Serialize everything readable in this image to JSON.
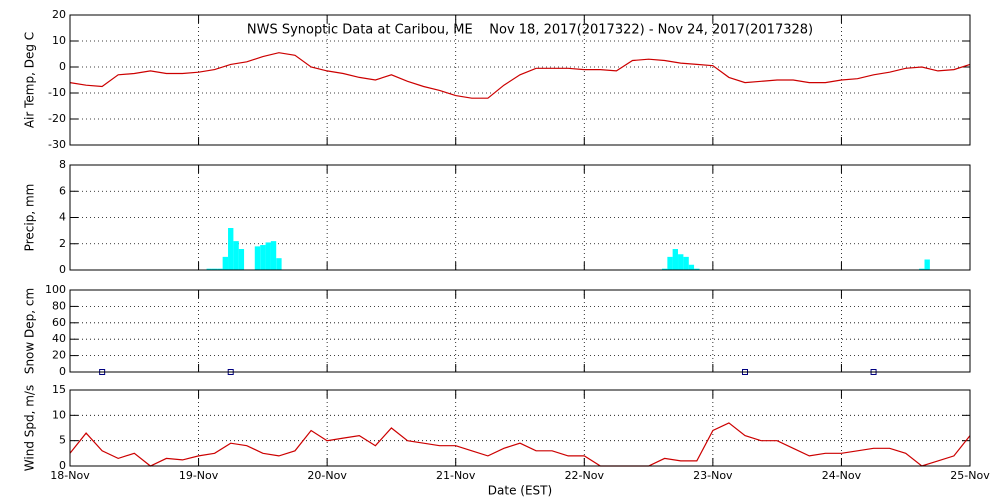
{
  "chart_data": [
    {
      "type": "line",
      "title": "NWS Synoptic Data at Caribou, ME    Nov 18, 2017(2017322) - Nov 24, 2017(2017328)",
      "y_label": "Air Temp, Deg C",
      "color": "#cc0000",
      "grid": true,
      "ylim": [
        -30,
        20
      ],
      "yticks": [
        -30,
        -20,
        -10,
        0,
        10,
        20
      ],
      "x": [
        0,
        0.125,
        0.25,
        0.375,
        0.5,
        0.625,
        0.75,
        0.875,
        1,
        1.125,
        1.25,
        1.375,
        1.5,
        1.625,
        1.75,
        1.875,
        2,
        2.125,
        2.25,
        2.375,
        2.5,
        2.625,
        2.75,
        2.875,
        3,
        3.125,
        3.25,
        3.375,
        3.5,
        3.625,
        3.75,
        3.875,
        4,
        4.125,
        4.25,
        4.375,
        4.5,
        4.625,
        4.75,
        4.875,
        5,
        5.125,
        5.25,
        5.375,
        5.5,
        5.625,
        5.75,
        5.875,
        6,
        6.125,
        6.25,
        6.375,
        6.5,
        6.625,
        6.75,
        6.875,
        7
      ],
      "values": [
        -6,
        -7,
        -7.5,
        -3,
        -2.5,
        -1.5,
        -2.5,
        -2.5,
        -2,
        -1,
        1,
        2,
        4,
        5.5,
        4.5,
        0,
        -1.5,
        -2.5,
        -4,
        -5,
        -3,
        -5.5,
        -7.5,
        -9,
        -11,
        -12,
        -12,
        -7,
        -3,
        -0.5,
        -0.5,
        -0.5,
        -1,
        -1,
        -1.5,
        2.5,
        3,
        2.5,
        1.5,
        1,
        0.5,
        -4,
        -6,
        -5.5,
        -5,
        -5,
        -6,
        -6,
        -5,
        -4.5,
        -3,
        -2,
        -0.5,
        0,
        -1.5,
        -1,
        1
      ]
    },
    {
      "type": "bar",
      "y_label": "Precip, mm",
      "color": "#00ffff",
      "grid": true,
      "ylim": [
        0,
        8
      ],
      "yticks": [
        0,
        2,
        4,
        6,
        8
      ],
      "x": [
        1.083,
        1.125,
        1.167,
        1.208,
        1.25,
        1.292,
        1.333,
        1.458,
        1.5,
        1.542,
        1.583,
        1.625,
        4.625,
        4.667,
        4.708,
        4.75,
        4.792,
        4.833,
        4.875,
        6.625,
        6.667
      ],
      "values": [
        0.1,
        0.1,
        0.1,
        1.0,
        3.2,
        2.2,
        1.6,
        1.8,
        1.9,
        2.1,
        2.2,
        0.9,
        0.1,
        1.0,
        1.6,
        1.2,
        1.0,
        0.4,
        0.1,
        0.1,
        0.8
      ]
    },
    {
      "type": "scatter",
      "y_label": "Snow Dep, cm",
      "color": "#000080",
      "grid": true,
      "ylim": [
        0,
        100
      ],
      "yticks": [
        0,
        20,
        40,
        60,
        80,
        100
      ],
      "x": [
        0.25,
        1.25,
        5.25,
        6.25
      ],
      "values": [
        0,
        0,
        0,
        0
      ]
    },
    {
      "type": "line",
      "y_label": "Wind Spd, m/s",
      "x_label": "Date (EST)",
      "color": "#cc0000",
      "grid": true,
      "ylim": [
        0,
        15
      ],
      "yticks": [
        0,
        5,
        10,
        15
      ],
      "xlim": [
        0,
        7
      ],
      "xticks": [
        {
          "value": 0,
          "label": "18-Nov"
        },
        {
          "value": 1,
          "label": "19-Nov"
        },
        {
          "value": 2,
          "label": "20-Nov"
        },
        {
          "value": 3,
          "label": "21-Nov"
        },
        {
          "value": 4,
          "label": "22-Nov"
        },
        {
          "value": 5,
          "label": "23-Nov"
        },
        {
          "value": 6,
          "label": "24-Nov"
        },
        {
          "value": 7,
          "label": "25-Nov"
        }
      ],
      "x": [
        0,
        0.125,
        0.25,
        0.375,
        0.5,
        0.625,
        0.75,
        0.875,
        1,
        1.125,
        1.25,
        1.375,
        1.5,
        1.625,
        1.75,
        1.875,
        2,
        2.125,
        2.25,
        2.375,
        2.5,
        2.625,
        2.75,
        2.875,
        3,
        3.125,
        3.25,
        3.375,
        3.5,
        3.625,
        3.75,
        3.875,
        4,
        4.125,
        4.25,
        4.375,
        4.5,
        4.625,
        4.75,
        4.875,
        5,
        5.125,
        5.25,
        5.375,
        5.5,
        5.625,
        5.75,
        5.875,
        6,
        6.125,
        6.25,
        6.375,
        6.5,
        6.625,
        6.75,
        6.875,
        7
      ],
      "values": [
        2.5,
        6.5,
        3,
        1.5,
        2.5,
        0,
        1.5,
        1.2,
        2,
        2.5,
        4.5,
        4,
        2.5,
        2,
        3,
        7,
        5,
        5.5,
        6,
        4,
        7.5,
        5,
        4.5,
        4,
        4,
        3,
        2,
        3.5,
        4.5,
        3,
        3,
        2,
        2,
        0,
        0,
        0,
        0,
        1.5,
        1,
        1,
        7,
        8.5,
        6,
        5,
        5,
        3.5,
        2,
        2.5,
        2.5,
        3,
        3.5,
        3.5,
        2.5,
        0,
        1,
        2,
        6
      ]
    }
  ]
}
